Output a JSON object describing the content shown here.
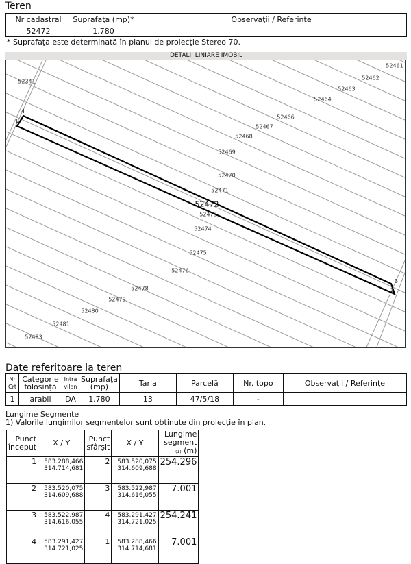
{
  "teren": {
    "title": "Teren",
    "headers": [
      "Nr cadastral",
      "Suprafaţa (mp)*",
      "Observaţii / Referinţe"
    ],
    "row": [
      "52472",
      "1.780",
      ""
    ],
    "note": "* Suprafaţa este determinată în planul de proiecţie Stereo 70."
  },
  "map": {
    "title": "DETALII LINIARE IMOBIL",
    "parcel_label": "52472",
    "neighbors": [
      "52461",
      "52462",
      "52463",
      "52464",
      "52466",
      "52467",
      "52468",
      "52469",
      "52470",
      "52471",
      "52473",
      "52474",
      "52475",
      "52476",
      "52478",
      "52479",
      "52480",
      "52481",
      "52483",
      "52341"
    ],
    "points": [
      "1",
      "2",
      "3",
      "4"
    ]
  },
  "date": {
    "title": "Date referitoare la teren",
    "headers": [
      "Nr Crt",
      "Categorie folosinţă",
      "Intra vilan",
      "Suprafaţa (mp)",
      "Tarla",
      "Parcelă",
      "Nr. topo",
      "Observaţii / Referinţe"
    ],
    "row": [
      "1",
      "arabil",
      "DA",
      "1.780",
      "13",
      "47/5/18",
      "-",
      ""
    ]
  },
  "segments": {
    "title": "Lungime Segmente",
    "note": "1) Valorile lungimilor segmentelor sunt obţinute din proiecţie în plan.",
    "headers": [
      "Punct început",
      "X / Y",
      "Punct sfârşit",
      "X / Y",
      "Lungime segment",
      "(m)"
    ],
    "header_sup": "(1)",
    "rows": [
      {
        "start": "1",
        "start_x": "583.288,466",
        "start_y": "314.714,681",
        "end": "2",
        "end_x": "583.520,075",
        "end_y": "314.609,688",
        "length": "254.296"
      },
      {
        "start": "2",
        "start_x": "583.520,075",
        "start_y": "314.609,688",
        "end": "3",
        "end_x": "583.522,987",
        "end_y": "314.616,055",
        "length": "7.001"
      },
      {
        "start": "3",
        "start_x": "583.522,987",
        "start_y": "314.616,055",
        "end": "4",
        "end_x": "583.291,427",
        "end_y": "314.721,025",
        "length": "254.241"
      },
      {
        "start": "4",
        "start_x": "583.291,427",
        "start_y": "314.721,025",
        "end": "1",
        "end_x": "583.288,466",
        "end_y": "314.714,681",
        "length": "7.001"
      }
    ]
  }
}
